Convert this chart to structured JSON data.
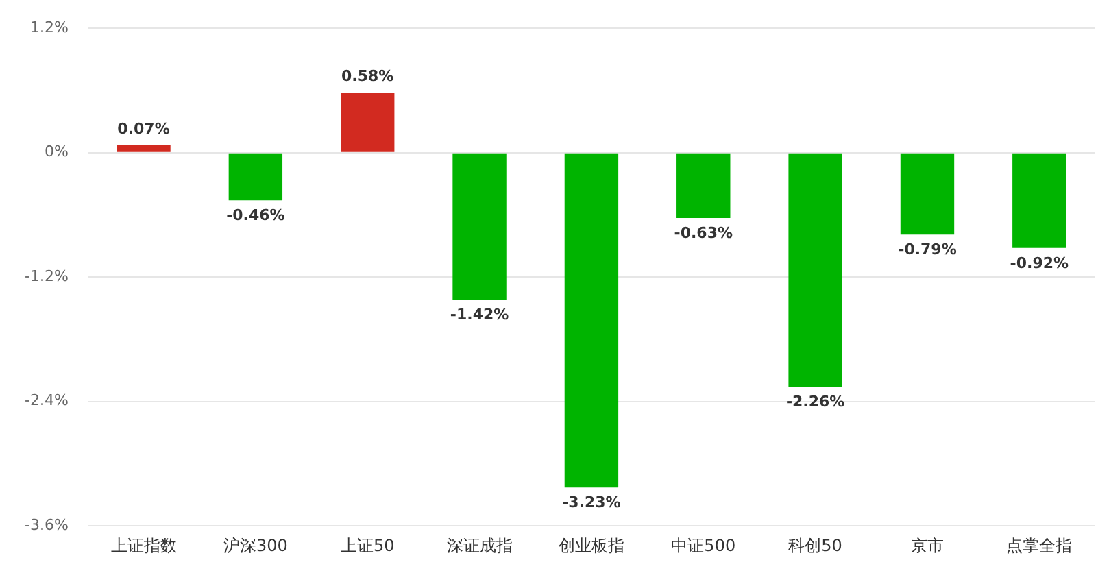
{
  "chart_data": {
    "type": "bar",
    "categories": [
      "上证指数",
      "沪深300",
      "上证50",
      "深证成指",
      "创业板指",
      "中证500",
      "科创50",
      "京市",
      "点掌全指"
    ],
    "values": [
      0.07,
      -0.46,
      0.58,
      -1.42,
      -3.23,
      -0.63,
      -2.26,
      -0.79,
      -0.92
    ],
    "colors": [
      "#d22a20",
      "#00b400",
      "#d22a20",
      "#00b400",
      "#00b400",
      "#00b400",
      "#00b400",
      "#00b400",
      "#00b400"
    ],
    "value_labels": [
      "0.07%",
      "-0.46%",
      "0.58%",
      "-1.42%",
      "-3.23%",
      "-0.63%",
      "-2.26%",
      "-0.79%",
      "-0.92%"
    ],
    "ylim": [
      -3.6,
      1.2
    ],
    "yticks": [
      {
        "value": 1.2,
        "label": "1.2%"
      },
      {
        "value": 0,
        "label": "0%"
      },
      {
        "value": -1.2,
        "label": "-1.2%"
      },
      {
        "value": -2.4,
        "label": "-2.4%"
      },
      {
        "value": -3.6,
        "label": "-3.6%"
      }
    ],
    "grid": "y",
    "legend": false
  }
}
